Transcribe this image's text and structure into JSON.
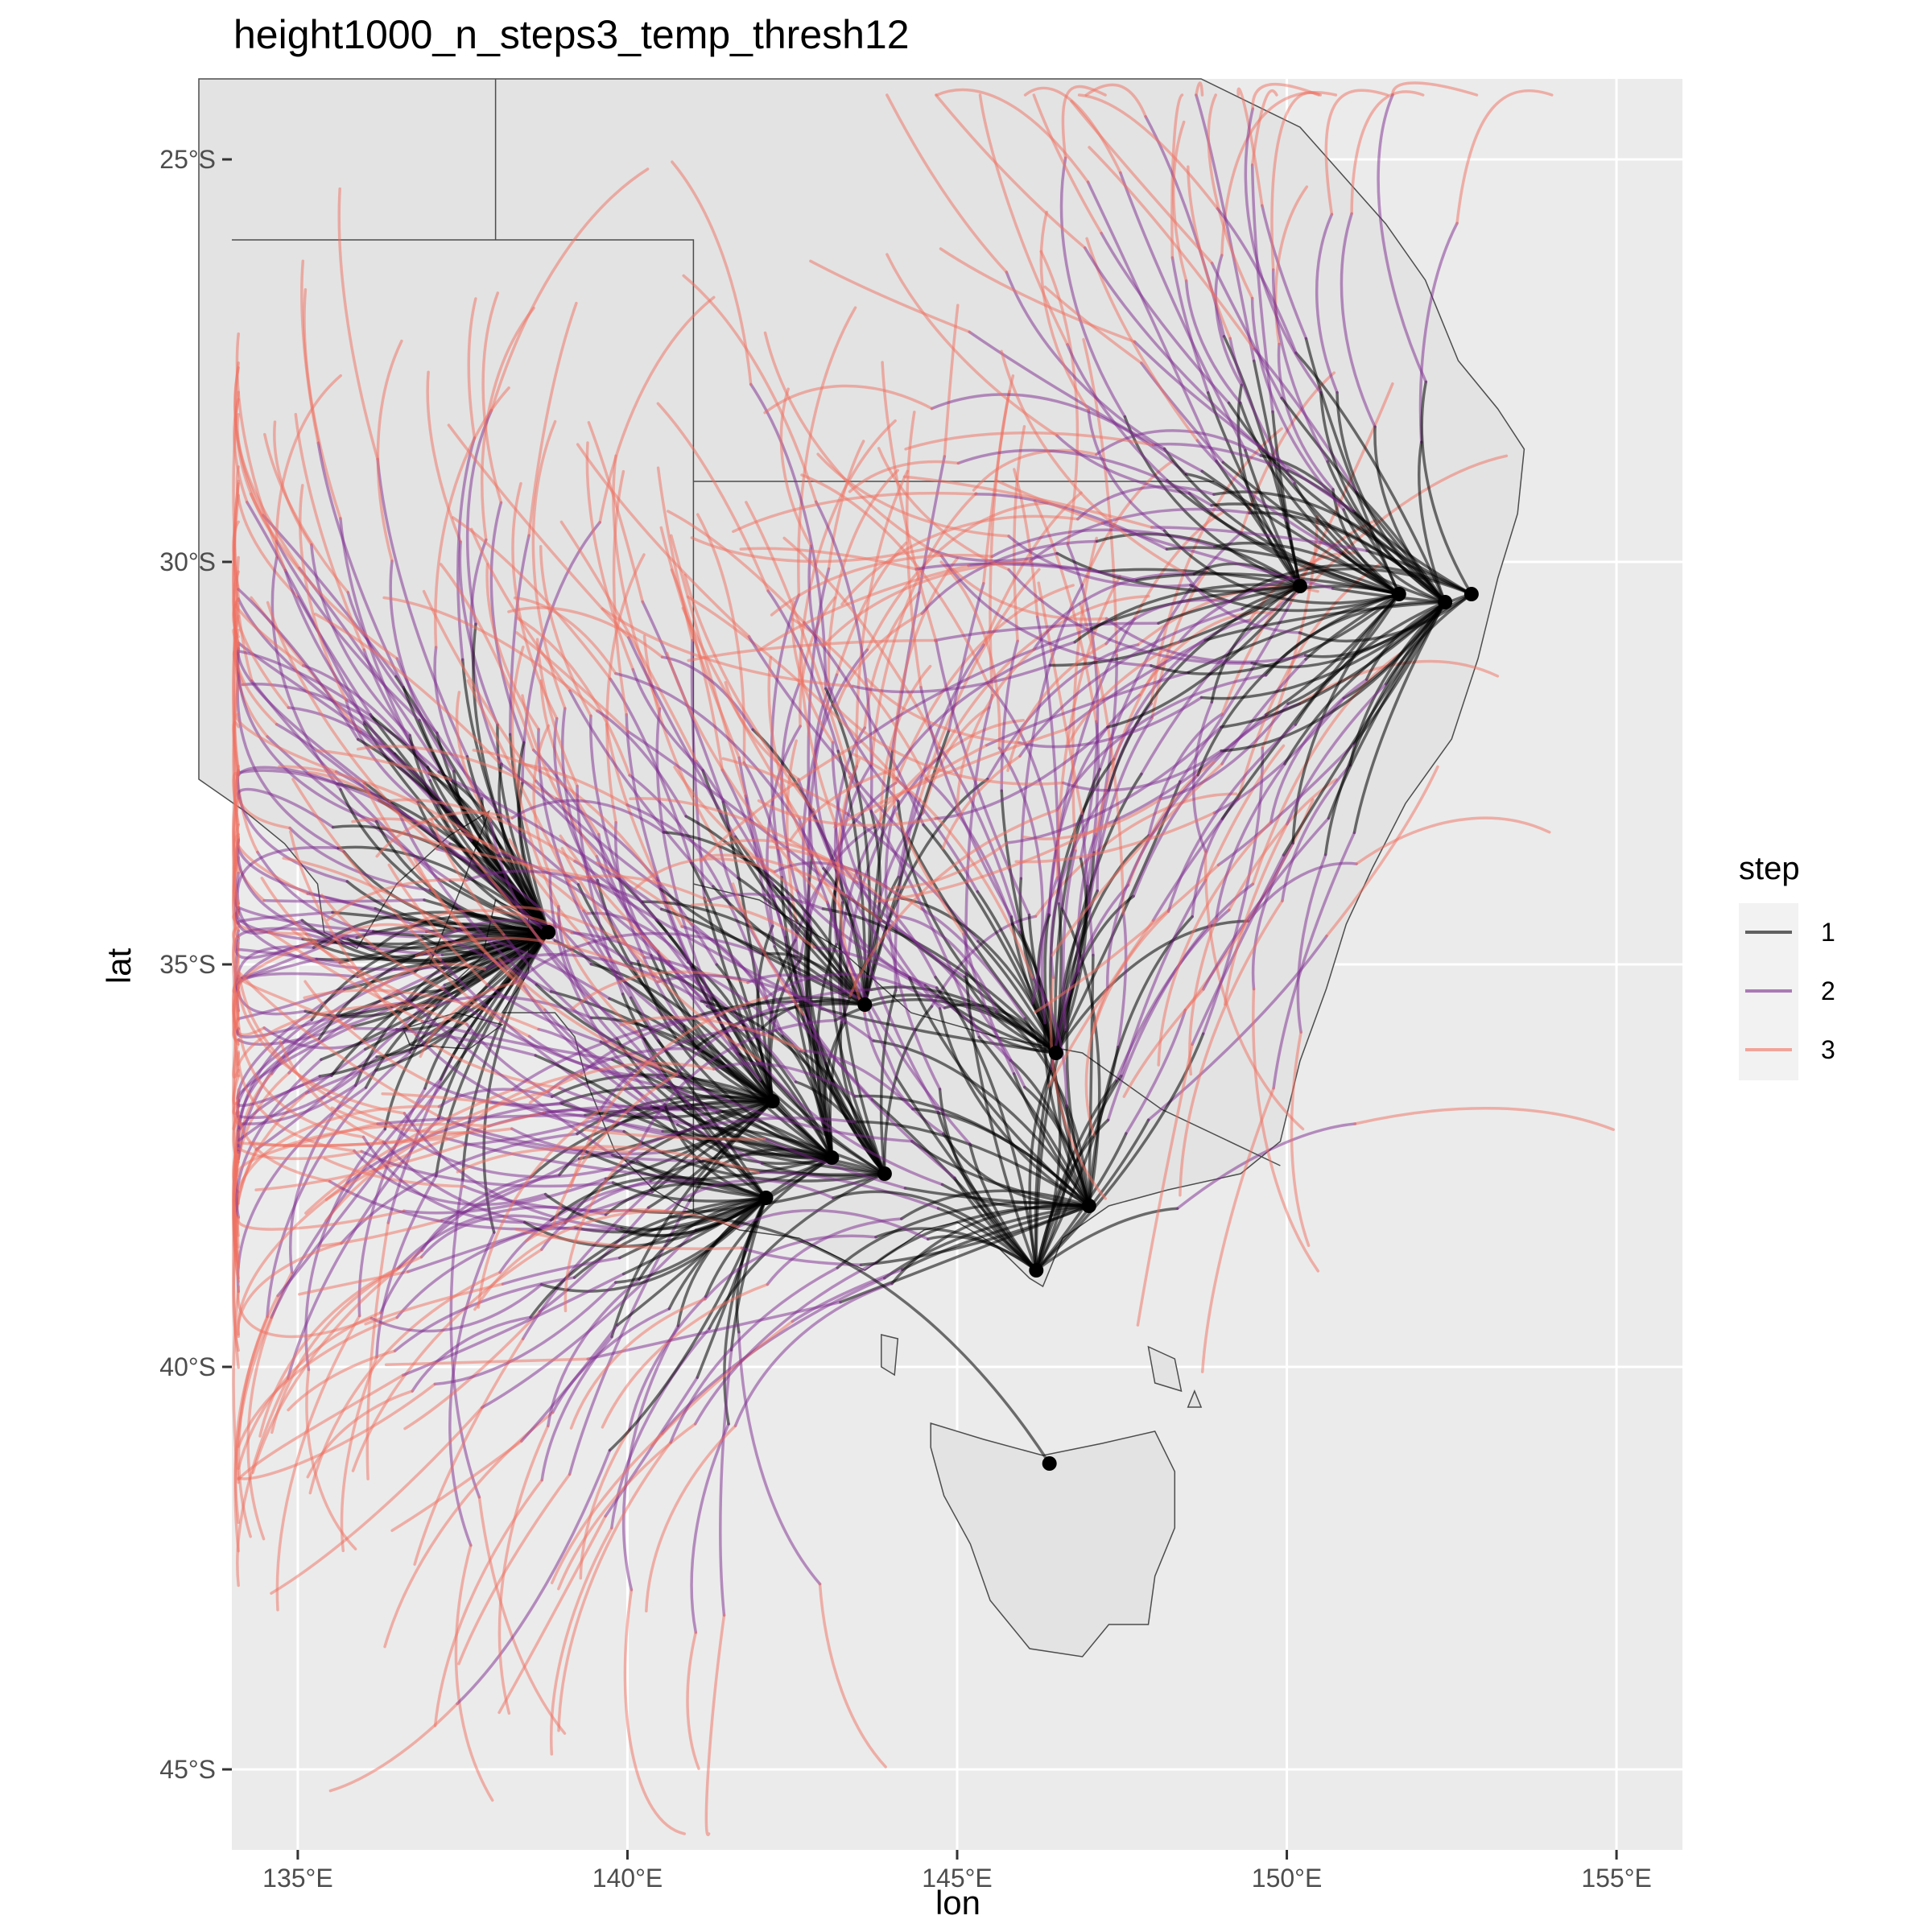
{
  "title": "height1000_n_steps3_temp_thresh12",
  "axes": {
    "xlabel": "lon",
    "ylabel": "lat",
    "x_ticks": [
      {
        "value": 135,
        "label": "135°E"
      },
      {
        "value": 140,
        "label": "140°E"
      },
      {
        "value": 145,
        "label": "145°E"
      },
      {
        "value": 150,
        "label": "150°E"
      },
      {
        "value": 155,
        "label": "155°E"
      }
    ],
    "y_ticks": [
      {
        "value": -25,
        "label": "25°S"
      },
      {
        "value": -30,
        "label": "30°S"
      },
      {
        "value": -35,
        "label": "35°S"
      },
      {
        "value": -40,
        "label": "40°S"
      },
      {
        "value": -45,
        "label": "45°S"
      }
    ],
    "xlim": [
      134,
      156
    ],
    "ylim": [
      -46,
      -24
    ]
  },
  "legend": {
    "title": "step",
    "entries": [
      {
        "label": "1",
        "color": "#000000"
      },
      {
        "label": "2",
        "color": "#7b2a8e"
      },
      {
        "label": "3",
        "color": "#f07060"
      }
    ]
  },
  "colors": {
    "panel": "#ebebeb",
    "grid": "#ffffff",
    "land": "#e3e3e3",
    "coast": "#4d4d4d",
    "source_point": "#000000"
  },
  "chart_data": {
    "type": "map-trajectories",
    "sources": [
      {
        "lon": 138.8,
        "lat": -34.6
      },
      {
        "lon": 142.2,
        "lat": -36.7
      },
      {
        "lon": 143.1,
        "lat": -37.4
      },
      {
        "lon": 143.9,
        "lat": -37.6
      },
      {
        "lon": 142.1,
        "lat": -37.9
      },
      {
        "lon": 143.6,
        "lat": -35.5
      },
      {
        "lon": 146.5,
        "lat": -36.1
      },
      {
        "lon": 147.0,
        "lat": -38.0
      },
      {
        "lon": 146.2,
        "lat": -38.8
      },
      {
        "lon": 146.4,
        "lat": -41.2
      },
      {
        "lon": 150.2,
        "lat": -30.3
      },
      {
        "lon": 151.7,
        "lat": -30.4
      },
      {
        "lon": 152.4,
        "lat": -30.5
      },
      {
        "lon": 152.8,
        "lat": -30.4
      }
    ],
    "source_trajectory_counts": [
      95,
      40,
      35,
      25,
      30,
      25,
      35,
      30,
      25,
      1,
      20,
      25,
      30,
      10
    ],
    "steps": [
      1,
      2,
      3
    ]
  }
}
